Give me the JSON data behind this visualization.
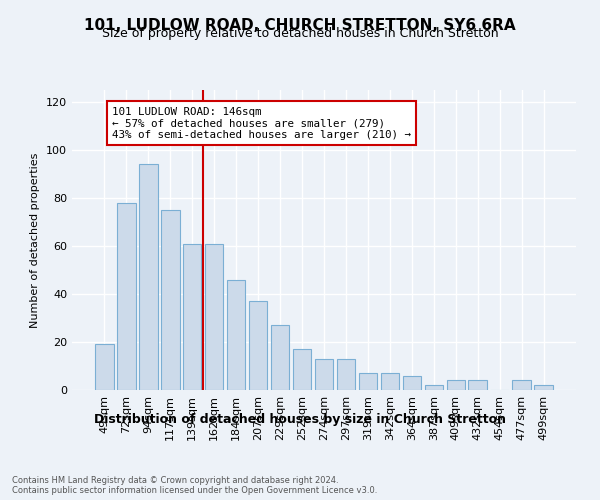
{
  "title": "101, LUDLOW ROAD, CHURCH STRETTON, SY6 6RA",
  "subtitle": "Size of property relative to detached houses in Church Stretton",
  "xlabel": "Distribution of detached houses by size in Church Stretton",
  "ylabel": "Number of detached properties",
  "categories": [
    "49sqm",
    "72sqm",
    "94sqm",
    "117sqm",
    "139sqm",
    "162sqm",
    "184sqm",
    "207sqm",
    "229sqm",
    "252sqm",
    "274sqm",
    "297sqm",
    "319sqm",
    "342sqm",
    "364sqm",
    "387sqm",
    "409sqm",
    "432sqm",
    "454sqm",
    "477sqm",
    "499sqm"
  ],
  "values": [
    19,
    78,
    94,
    75,
    61,
    61,
    46,
    37,
    27,
    17,
    13,
    13,
    7,
    7,
    6,
    2,
    4,
    4,
    0,
    4,
    2
  ],
  "bar_color": "#ccdaea",
  "bar_edge_color": "#7bafd4",
  "bar_width": 0.85,
  "vline_x": 4.5,
  "vline_color": "#cc0000",
  "annotation_text": "101 LUDLOW ROAD: 146sqm\n← 57% of detached houses are smaller (279)\n43% of semi-detached houses are larger (210) →",
  "annotation_box_edgecolor": "#cc0000",
  "ylim": [
    0,
    125
  ],
  "yticks": [
    0,
    20,
    40,
    60,
    80,
    100,
    120
  ],
  "title_fontsize": 11,
  "subtitle_fontsize": 9,
  "xlabel_fontsize": 9,
  "ylabel_fontsize": 8,
  "tick_fontsize": 8,
  "footer_text": "Contains HM Land Registry data © Crown copyright and database right 2024.\nContains public sector information licensed under the Open Government Licence v3.0.",
  "bg_color": "#edf2f8",
  "plot_bg_color": "#edf2f8"
}
